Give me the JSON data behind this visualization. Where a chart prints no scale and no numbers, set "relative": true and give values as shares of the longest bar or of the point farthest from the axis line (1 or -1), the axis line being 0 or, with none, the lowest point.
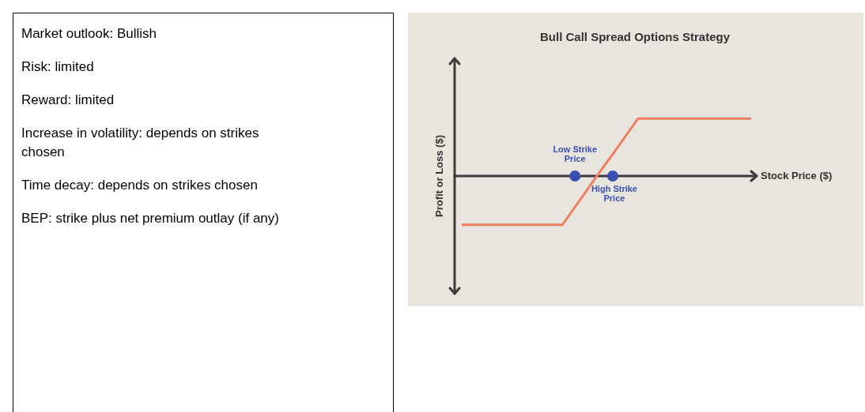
{
  "chart_data": [
    {
      "type": "other",
      "annotations": [
        "Market outlook: Bullish",
        "Risk: limited",
        "Reward: limited",
        "Increase in volatility: depends on strikes chosen",
        "Time decay: depends on strikes chosen",
        "BEP: strike plus net premium outlay (if any)"
      ]
    },
    {
      "type": "line",
      "title": "Bull Call Spread Options Strategy",
      "xlabel": "Stock Price ($)",
      "ylabel": "Profit or Loss ($)",
      "relative": true,
      "grid": false,
      "legend": false,
      "annotations": [
        "Low Strike Price",
        "High Strike Price"
      ],
      "categories": [
        null,
        null,
        null,
        null,
        null,
        null,
        null,
        null,
        null,
        null,
        null,
        null,
        null,
        null,
        null,
        null,
        null,
        null,
        null,
        null,
        null,
        null,
        null,
        null
      ],
      "series": [
        {
          "type": "line",
          "color": "#f07f5f",
          "marker": "none",
          "values": [
            -0.85,
            -0.85,
            -0.85,
            -0.85,
            -0.85,
            -0.85,
            -0.85,
            -0.85,
            -0.85,
            -0.54,
            -0.23,
            0.08,
            0.38,
            0.69,
            1,
            1,
            1,
            1,
            1,
            1,
            1,
            1,
            1,
            1
          ]
        }
      ]
    }
  ]
}
